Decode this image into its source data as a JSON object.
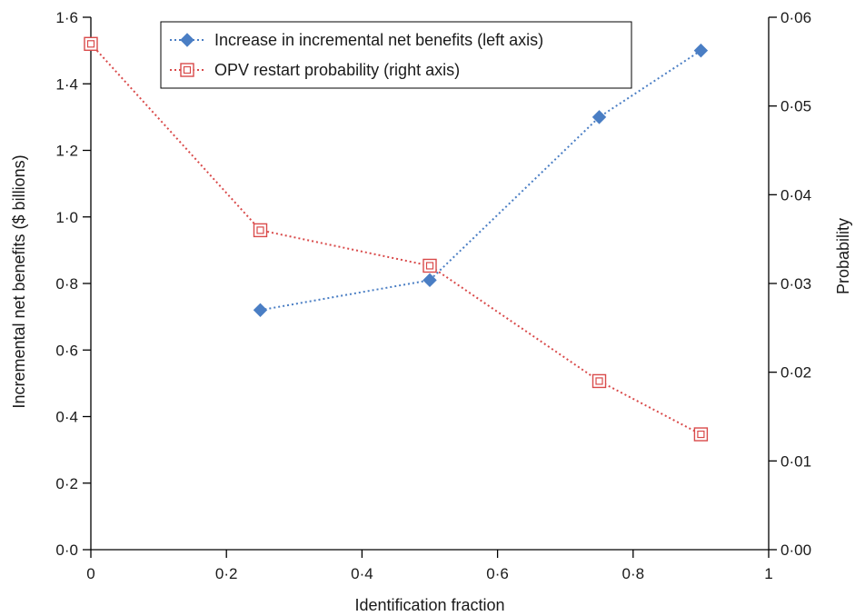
{
  "chart_data": {
    "type": "line",
    "xlabel": "Identification fraction",
    "ylabel_left": "Incremental net benefits ($ billions)",
    "ylabel_right": "Probability",
    "xlim": [
      0,
      1
    ],
    "ylim_left": [
      0,
      1.6
    ],
    "ylim_right": [
      0,
      0.06
    ],
    "x_ticks": [
      "0",
      "0·2",
      "0·4",
      "0·6",
      "0·8",
      "1"
    ],
    "y_left_ticks": [
      "0·0",
      "0·2",
      "0·4",
      "0·6",
      "0·8",
      "1·0",
      "1·2",
      "1·4",
      "1·6"
    ],
    "y_right_ticks": [
      "0·00",
      "0·01",
      "0·02",
      "0·03",
      "0·04",
      "0·05",
      "0·06"
    ],
    "grid": false,
    "legend_position": "top-center",
    "series": [
      {
        "name": "Increase in incremental net benefits (left axis)",
        "axis": "left",
        "marker": "filled-diamond",
        "color": "#4a7ec4",
        "x": [
          0.25,
          0.5,
          0.75,
          0.9
        ],
        "y": [
          0.72,
          0.81,
          1.3,
          1.5
        ]
      },
      {
        "name": "OPV restart probability (right axis)",
        "axis": "right",
        "marker": "open-square",
        "color": "#d94a4a",
        "x": [
          0,
          0.25,
          0.5,
          0.75,
          0.9
        ],
        "y": [
          0.057,
          0.036,
          0.032,
          0.019,
          0.013
        ]
      }
    ]
  }
}
